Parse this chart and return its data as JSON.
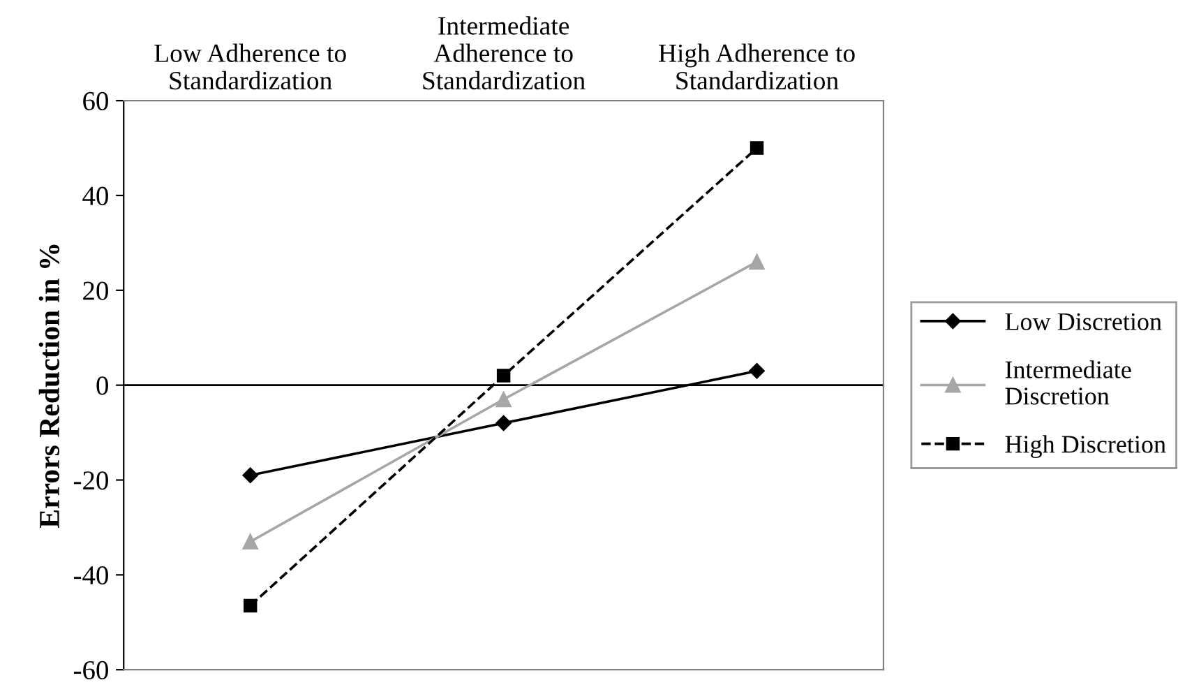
{
  "chart_data": {
    "type": "line",
    "ylabel": "Errors Reduction in %",
    "categories": [
      "Low Adherence to\nStandardization",
      "Intermediate\nAdherence to\nStandardization",
      "High Adherence to\nStandardization"
    ],
    "series": [
      {
        "name": "Low Discretion",
        "color": "#000000",
        "marker": "diamond",
        "line_style": "solid",
        "values": [
          -19,
          -8,
          3
        ]
      },
      {
        "name": "Intermediate\nDiscretion",
        "color": "#a6a6a6",
        "marker": "triangle",
        "line_style": "solid",
        "values": [
          -33,
          -3,
          26
        ]
      },
      {
        "name": "High Discretion",
        "color": "#000000",
        "marker": "square",
        "line_style": "dashed",
        "values": [
          -46.5,
          2,
          50
        ]
      }
    ],
    "ylim": [
      -60,
      60
    ],
    "yticks": [
      -60,
      -40,
      -20,
      0,
      20,
      40,
      60
    ],
    "ref_lines": [
      {
        "axis": "y",
        "value": 0,
        "color": "#000000",
        "line_style": "solid"
      }
    ],
    "grid": false,
    "legend": "right"
  }
}
